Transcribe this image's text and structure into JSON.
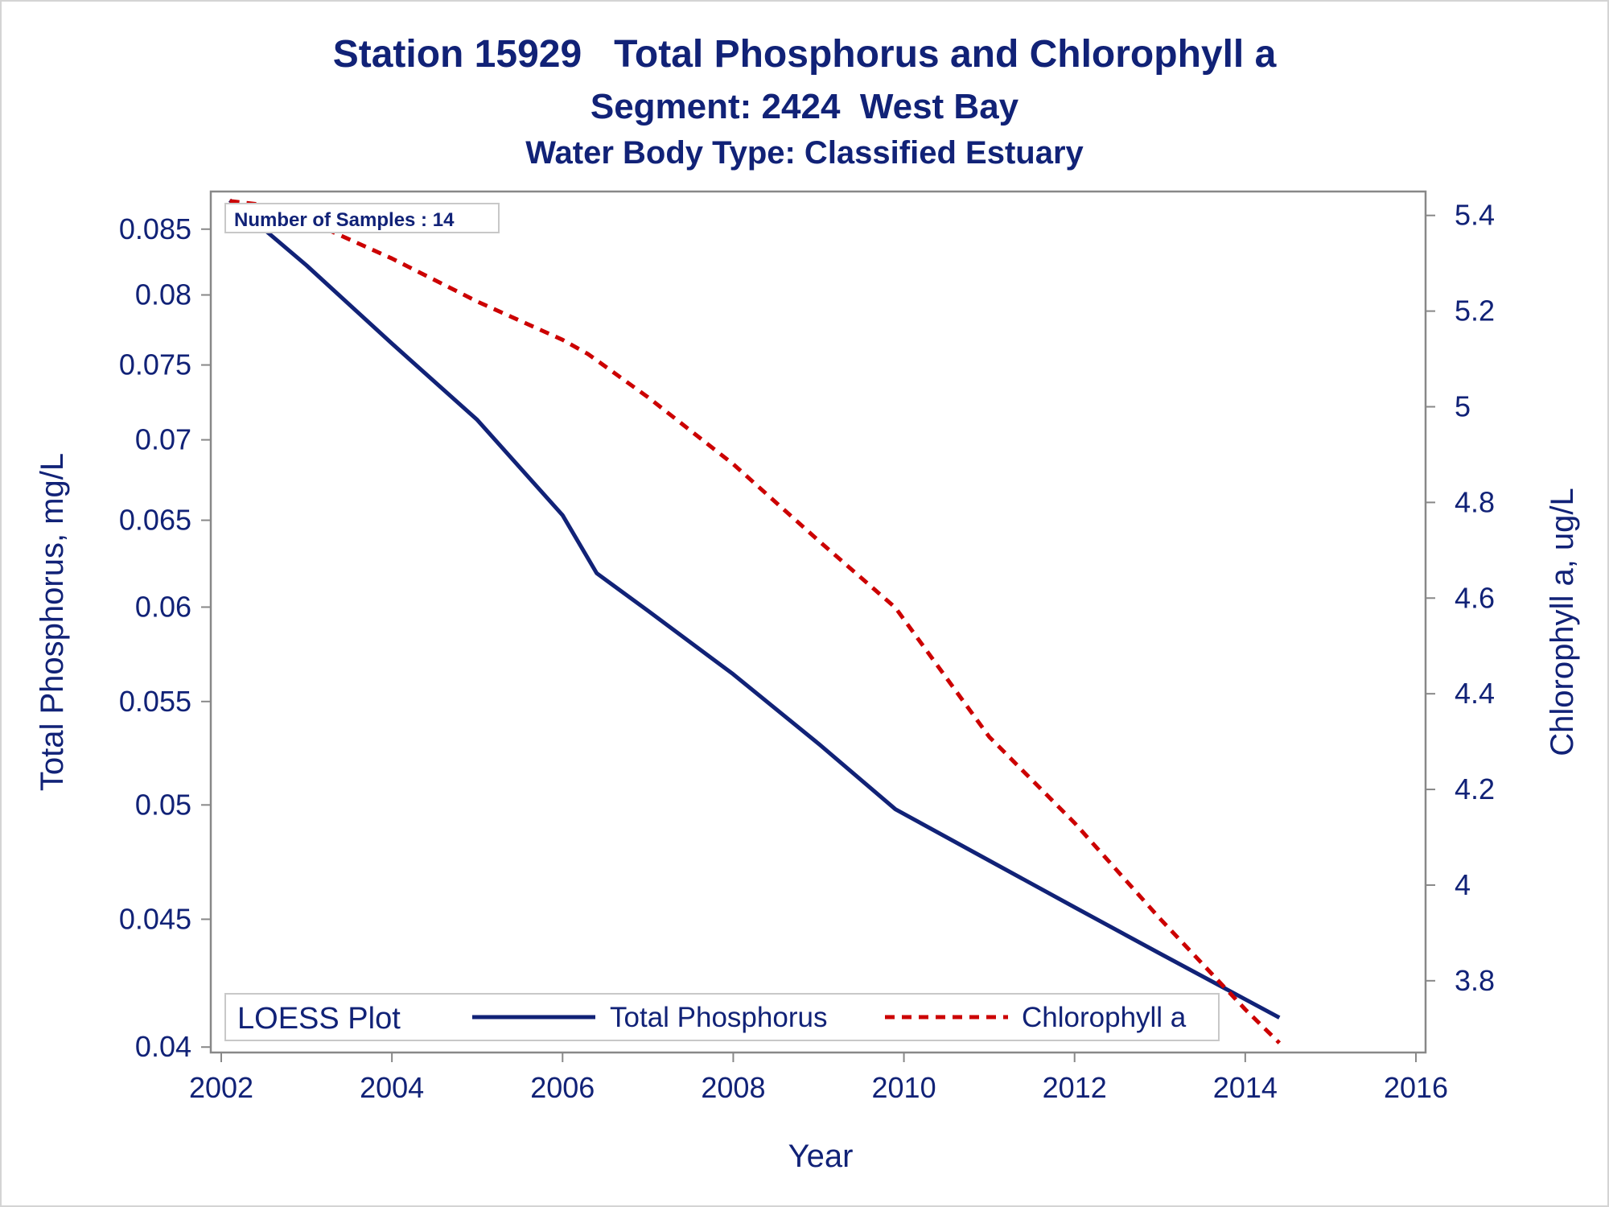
{
  "title": {
    "line1": "Station 15929   Total Phosphorus and Chlorophyll a",
    "line2": "Segment: 2424  West Bay",
    "line3": "Water Body Type: Classified Estuary"
  },
  "annotation": "Number of Samples : 14",
  "legend": {
    "title": "LOESS Plot",
    "placement": "bottom-left inside"
  },
  "colors": {
    "text": "#112277",
    "tp_line": "#112277",
    "chla_line": "#cc0000",
    "axis": "#888888"
  },
  "chart_data": {
    "type": "line",
    "xlabel": "Year",
    "ylabel": "Total Phosphorus, mg/L",
    "y2label": "Chlorophyll a, ug/L",
    "xlim": [
      2002,
      2016
    ],
    "x_ticks": [
      "2002",
      "2004",
      "2006",
      "2008",
      "2010",
      "2012",
      "2014",
      "2016"
    ],
    "y_scale": "log",
    "ylim": [
      0.0398,
      0.088
    ],
    "y_ticks": [
      "0.085",
      "0.08",
      "0.075",
      "0.07",
      "0.065",
      "0.06",
      "0.055",
      "0.05",
      "0.045",
      "0.04"
    ],
    "y2lim": [
      3.65,
      5.45
    ],
    "y2_ticks": [
      "5.4",
      "5.2",
      "5",
      "4.8",
      "4.6",
      "4.4",
      "4.2",
      "4",
      "3.8"
    ],
    "grid": false,
    "series": [
      {
        "name": "Total Phosphorus",
        "axis": "left",
        "style": "solid",
        "x": [
          2002.1,
          2003,
          2004,
          2005,
          2006,
          2006.4,
          2007,
          2008,
          2009,
          2009.9,
          2011,
          2012,
          2013,
          2014,
          2014.4
        ],
        "y": [
          0.0873,
          0.0822,
          0.0765,
          0.0713,
          0.0653,
          0.0619,
          0.0598,
          0.0564,
          0.0529,
          0.0498,
          0.0475,
          0.0455,
          0.0436,
          0.0418,
          0.0411
        ]
      },
      {
        "name": "Chlorophyll a",
        "axis": "right",
        "style": "dashed",
        "x": [
          2002.1,
          2002.6,
          2003,
          2004,
          2005,
          2006,
          2006.3,
          2007,
          2008,
          2009,
          2009.9,
          2011,
          2012,
          2013,
          2014,
          2014.4
        ],
        "y": [
          5.43,
          5.42,
          5.39,
          5.31,
          5.22,
          5.14,
          5.11,
          5.02,
          4.88,
          4.72,
          4.58,
          4.31,
          4.13,
          3.93,
          3.74,
          3.67
        ]
      }
    ]
  }
}
